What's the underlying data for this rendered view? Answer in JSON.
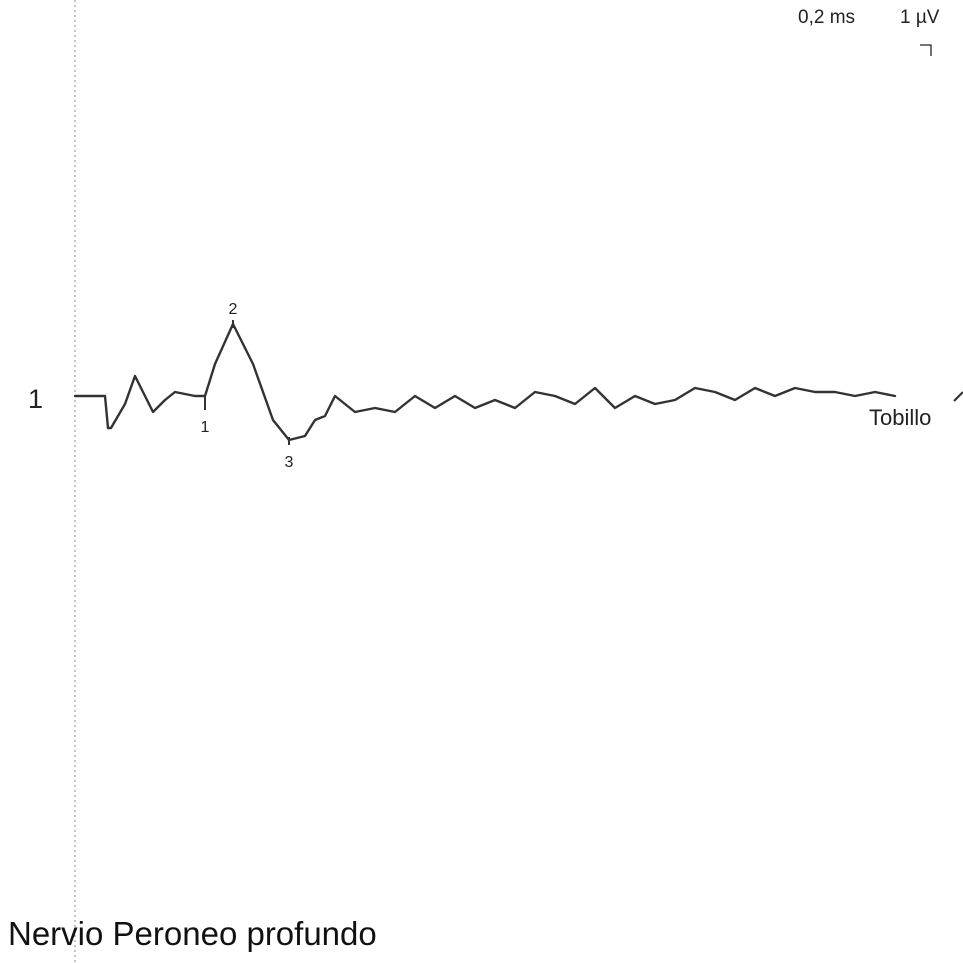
{
  "scale": {
    "time_label": "0,2 ms",
    "amplitude_label": "1 µV"
  },
  "channel": {
    "number": "1",
    "site": "Tobillo"
  },
  "title": "Nervio Peroneo profundo",
  "colors": {
    "trace": "#333333",
    "cursor_line": "#888888",
    "background": "#ffffff"
  },
  "chart_data": {
    "type": "line",
    "title": "Nervio Peroneo profundo",
    "xlabel": "",
    "ylabel": "",
    "x_unit": "ms",
    "y_unit": "µV",
    "grid": false,
    "xlim": [
      0,
      8.8
    ],
    "ylim": [
      -2.5,
      2.5
    ],
    "series": [
      {
        "name": "Tobillo",
        "x": [
          0.0,
          0.3,
          0.33,
          0.36,
          0.5,
          0.6,
          0.66,
          0.78,
          0.9,
          1.0,
          1.2,
          1.3,
          1.4,
          1.58,
          1.78,
          1.98,
          2.14,
          2.3,
          2.4,
          2.5,
          2.6,
          2.8,
          3.0,
          3.2,
          3.4,
          3.6,
          3.8,
          4.0,
          4.2,
          4.4,
          4.6,
          4.8,
          5.0,
          5.2,
          5.4,
          5.6,
          5.8,
          6.0,
          6.2,
          6.4,
          6.6,
          6.8,
          7.0,
          7.2,
          7.4,
          7.6,
          7.8,
          8.0,
          8.2
        ],
        "y": [
          0.0,
          0.0,
          -0.8,
          -0.8,
          -0.2,
          0.5,
          0.2,
          -0.4,
          -0.1,
          0.1,
          0.0,
          0.0,
          0.8,
          1.8,
          0.8,
          -0.6,
          -1.1,
          -1.0,
          -0.6,
          -0.5,
          0.0,
          -0.4,
          -0.3,
          -0.4,
          0.0,
          -0.3,
          0.0,
          -0.3,
          -0.1,
          -0.3,
          0.1,
          0.0,
          -0.2,
          0.2,
          -0.3,
          0.0,
          -0.2,
          -0.1,
          0.2,
          0.1,
          -0.1,
          0.2,
          0.0,
          0.2,
          0.1,
          0.1,
          0.0,
          0.1,
          0.0
        ]
      }
    ],
    "markers": [
      {
        "label": "1",
        "x": 1.3,
        "y": 0.0
      },
      {
        "label": "2",
        "x": 1.58,
        "y": 1.8
      },
      {
        "label": "3",
        "x": 2.14,
        "y": -1.1
      }
    ],
    "annotations": [
      "1",
      "Tobillo",
      "0,2 ms",
      "1 µV"
    ]
  }
}
